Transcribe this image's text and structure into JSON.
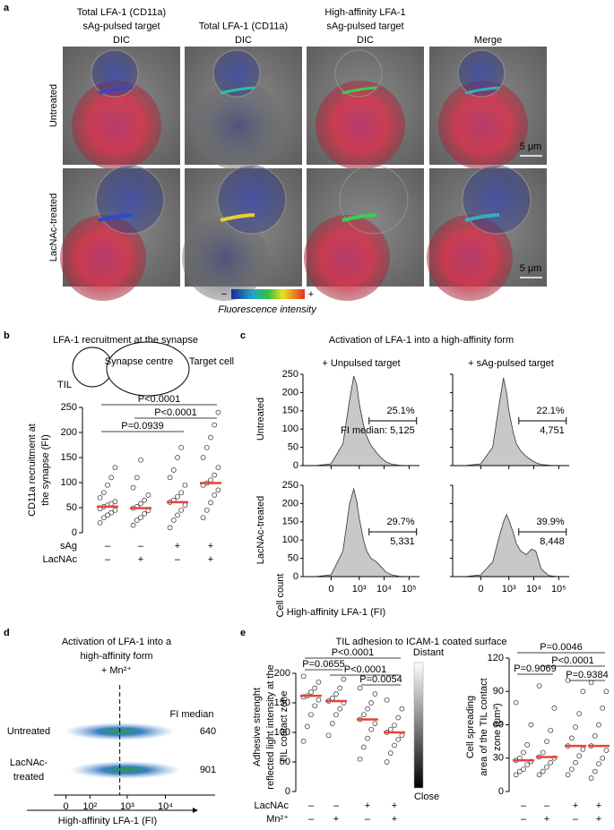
{
  "panel_a": {
    "label": "a",
    "columns": [
      [
        {
          "text": "Total LFA-1 (CD11a)",
          "color": "#2a3cd6"
        },
        {
          "text": "sAg-pulsed target",
          "color": "#e0262b"
        },
        {
          "text": "DIC",
          "color": "#000000"
        }
      ],
      [
        {
          "text": "Total LFA-1 (CD11a)",
          "color": "#000000"
        },
        {
          "text": "DIC",
          "color": "#888888"
        }
      ],
      [
        {
          "text": "High-affinity LFA-1",
          "color": "#1a9a2a"
        },
        {
          "text": "sAg-pulsed target",
          "color": "#e0262b"
        },
        {
          "text": "DIC",
          "color": "#000000"
        }
      ],
      [
        {
          "text": "Merge",
          "color": "#000000"
        }
      ]
    ],
    "rows": [
      "Untreated",
      "LacNAc-treated"
    ],
    "scale_bar": "5 μm",
    "colorbar": {
      "low": "−",
      "high": "+",
      "label": "Fluorescence intensity"
    }
  },
  "panel_b": {
    "label": "b",
    "title": "LFA-1 recruitment at the synapse",
    "diagram": {
      "til": "TIL",
      "synapse": "Synapse centre",
      "target": "Target cell"
    },
    "y_label": [
      "CD11a recruitment at",
      "the  synapse (FI)"
    ],
    "ylim": [
      0,
      250
    ],
    "yticks": [
      0,
      50,
      100,
      150,
      200,
      250
    ],
    "median_color": "#e8423a",
    "groups": [
      {
        "values": [
          20,
          30,
          35,
          40,
          45,
          48,
          52,
          55,
          58,
          62,
          70,
          80,
          95,
          110,
          130
        ],
        "median": 52
      },
      {
        "values": [
          15,
          25,
          30,
          38,
          44,
          49,
          52,
          58,
          65,
          75,
          90,
          110,
          145
        ],
        "median": 49
      },
      {
        "values": [
          10,
          25,
          35,
          45,
          55,
          61,
          65,
          72,
          80,
          95,
          110,
          125,
          150,
          170
        ],
        "median": 61
      },
      {
        "values": [
          30,
          45,
          60,
          75,
          85,
          95,
          99,
          105,
          115,
          130,
          150,
          170,
          190,
          215,
          240
        ],
        "median": 99
      }
    ],
    "comparisons": [
      "P=0.0939",
      "P<0.0001",
      "P<0.0001"
    ],
    "conditions": [
      {
        "name": "sAg",
        "signs": [
          "–",
          "–",
          "+",
          "+"
        ]
      },
      {
        "name": "LacNAc",
        "signs": [
          "–",
          "+",
          "–",
          "+"
        ]
      }
    ]
  },
  "panel_c": {
    "label": "c",
    "title": "Activation of LFA-1 into a high-affinity form",
    "columns": [
      "+ Unpulsed target",
      "+ sAg-pulsed target"
    ],
    "rows": [
      "Untreated",
      "LacNAc-treated"
    ],
    "y_label": "Cell count",
    "x_label": "High-affinity LFA-1 (FI)",
    "xlim": [
      -1000,
      262144
    ],
    "xticks": [
      0,
      {
        "value": 1000,
        "label": "10³"
      },
      {
        "value": 10000,
        "label": "10⁴"
      },
      {
        "value": 100000,
        "label": "10⁵"
      }
    ],
    "ylim": [
      0,
      250
    ],
    "yticks": [
      0,
      50,
      100,
      150,
      200,
      250
    ],
    "color": "#c8c8c8",
    "x": [
      -300,
      0,
      200,
      400,
      600,
      800,
      1000,
      1500,
      2000,
      3000,
      5000,
      8000,
      12000,
      20000,
      40000,
      80000
    ],
    "histograms": [
      {
        "values": [
          0,
          5,
          60,
          180,
          245,
          220,
          170,
          110,
          80,
          55,
          35,
          20,
          10,
          4,
          1,
          0
        ],
        "gate": [
          2500,
          200000
        ],
        "annotations": [
          "25.1%",
          "FI median: 5,125"
        ]
      },
      {
        "values": [
          0,
          5,
          50,
          170,
          240,
          200,
          150,
          90,
          60,
          40,
          25,
          15,
          8,
          3,
          1,
          0
        ],
        "gate": [
          2500,
          200000
        ],
        "annotations": [
          "22.1%",
          "4,751"
        ]
      },
      {
        "values": [
          0,
          5,
          70,
          200,
          240,
          205,
          160,
          100,
          70,
          50,
          40,
          25,
          12,
          5,
          1,
          0
        ],
        "gate": [
          2500,
          200000
        ],
        "annotations": [
          "29.7%",
          "5,331"
        ]
      },
      {
        "values": [
          0,
          5,
          40,
          110,
          150,
          170,
          155,
          120,
          90,
          70,
          60,
          75,
          70,
          20,
          3,
          0
        ],
        "gate": [
          2500,
          200000
        ],
        "annotations": [
          "39.9%",
          "8,448"
        ]
      }
    ]
  },
  "panel_d": {
    "label": "d",
    "title": [
      "Activation of LFA-1 into a",
      "high-affinity form",
      "+ Mn²⁺"
    ],
    "median_header": "FI median",
    "rows": [
      {
        "label": [
          "Untreated"
        ],
        "median": 640
      },
      {
        "label": [
          "LacNAc-",
          "treated"
        ],
        "median": 901
      }
    ],
    "x_label": "High-affinity LFA-1 (FI)",
    "xlim": [
      -40,
      200000
    ],
    "xticks": [
      0,
      {
        "value": 100,
        "label": "10²"
      },
      {
        "value": 1000,
        "label": "10³"
      },
      {
        "value": 10000,
        "label": "10⁴"
      }
    ]
  },
  "panel_e": {
    "label": "e",
    "title": "TIL adhesion to ICAM-1 coated surface",
    "median_color": "#e8423a",
    "plots": [
      {
        "y_label": [
          "Adhesive strenght",
          "reflected light intensity at the",
          "TIL contact zone"
        ],
        "ylim": [
          0,
          200
        ],
        "yticks": [
          0,
          50,
          100,
          150,
          200
        ],
        "groups": [
          {
            "values": [
              85,
              110,
              130,
              145,
              155,
              160,
              162,
              168,
              175,
              185,
              195
            ],
            "median": 162
          },
          {
            "values": [
              95,
              115,
              130,
              140,
              150,
              153,
              158,
              165,
              175,
              190
            ],
            "median": 153
          },
          {
            "values": [
              55,
              75,
              90,
              105,
              115,
              122,
              130,
              140,
              150,
              165,
              175
            ],
            "median": 122
          },
          {
            "values": [
              50,
              65,
              78,
              88,
              95,
              100,
              105,
              112,
              125,
              140,
              155
            ],
            "median": 100
          }
        ],
        "comparisons": [
          "P<0.0001",
          "P=0.0655",
          "P<0.0001",
          "P=0.0054"
        ],
        "gradient": {
          "top": "Distant",
          "bottom": "Close"
        }
      },
      {
        "y_label": [
          "Cell spreading",
          "area of the TIL contact",
          "zone (μm²)"
        ],
        "ylim": [
          0,
          120
        ],
        "yticks": [
          0,
          30,
          60,
          90,
          120
        ],
        "groups": [
          {
            "values": [
              15,
              18,
              20,
              24,
              27,
              28,
              30,
              35,
              42,
              60,
              80
            ],
            "median": 28
          },
          {
            "values": [
              15,
              18,
              22,
              26,
              30,
              31,
              35,
              45,
              55,
              75,
              95
            ],
            "median": 31
          },
          {
            "values": [
              15,
              20,
              26,
              32,
              38,
              41,
              48,
              58,
              70,
              90,
              100
            ],
            "median": 41
          },
          {
            "values": [
              12,
              18,
              25,
              30,
              37,
              41,
              50,
              60,
              75,
              90,
              98
            ],
            "median": 41
          }
        ],
        "comparisons": [
          "P=0.0046",
          "P<0.0001",
          "P=0.9069",
          "P=0.9384"
        ]
      }
    ],
    "conditions": [
      {
        "name": "LacNAc",
        "signs": [
          "–",
          "–",
          "+",
          "+"
        ]
      },
      {
        "name": "Mn²⁺",
        "signs": [
          "–",
          "+",
          "–",
          "+"
        ]
      }
    ]
  }
}
